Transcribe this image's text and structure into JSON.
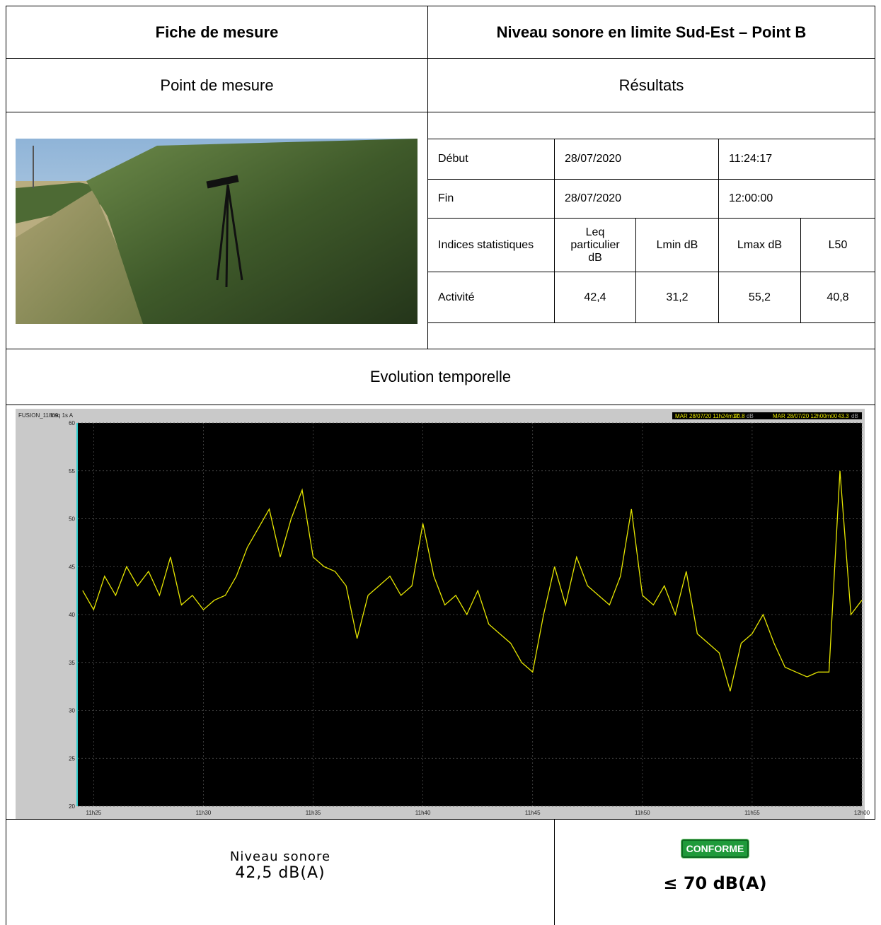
{
  "header": {
    "left": "Fiche de mesure",
    "right": "Niveau sonore en limite Sud-Est – Point B"
  },
  "subheader": {
    "left": "Point de mesure",
    "right": "Résultats"
  },
  "results": {
    "rows": [
      [
        "Début",
        "28/07/2020",
        "11:24:17"
      ],
      [
        "Fin",
        "28/07/2020",
        "12:00:00"
      ],
      [
        "Indices statistiques",
        "Leq particulier dB",
        "Lmin dB",
        "Lmax dB",
        "L50"
      ],
      [
        "Activité",
        "42,4",
        "31,2",
        "55,2",
        "40,8"
      ]
    ]
  },
  "section": "Evolution temporelle",
  "chart": {
    "type": "line",
    "source": "FUSION_11869",
    "measure": "Leq 1s A",
    "start_label": "MAR 28/07/20 11h24m17",
    "start_value": "40.8",
    "start_unit": "dB",
    "end_label": "MAR 28/07/20 12h00m00",
    "end_value": "43.3",
    "end_unit": "dB",
    "xlim": [
      24.28,
      60
    ],
    "ylim": [
      20,
      60
    ],
    "xticks": [
      {
        "value": 25,
        "label": "11h25"
      },
      {
        "value": 30,
        "label": "11h30"
      },
      {
        "value": 35,
        "label": "11h35"
      },
      {
        "value": 40,
        "label": "11h40"
      },
      {
        "value": 45,
        "label": "11h45"
      },
      {
        "value": 50,
        "label": "11h50"
      },
      {
        "value": 55,
        "label": "11h55"
      },
      {
        "value": 60,
        "label": "12h00"
      }
    ],
    "yticks": [
      20,
      25,
      30,
      35,
      40,
      45,
      50,
      55,
      60
    ],
    "grid": true,
    "series": [
      {
        "color": "#e6e600",
        "x": [
          24.5,
          25,
          25.5,
          26,
          26.5,
          27,
          27.5,
          28,
          28.5,
          29,
          29.5,
          30,
          30.5,
          31,
          31.5,
          32,
          32.5,
          33,
          33.5,
          34,
          34.5,
          35,
          35.5,
          36,
          36.5,
          37,
          37.5,
          38,
          38.5,
          39,
          39.5,
          40,
          40.5,
          41,
          41.5,
          42,
          42.5,
          43,
          43.5,
          44,
          44.5,
          45,
          45.5,
          46,
          46.5,
          47,
          47.5,
          48,
          48.5,
          49,
          49.5,
          50,
          50.5,
          51,
          51.5,
          52,
          52.5,
          53,
          53.5,
          54,
          54.5,
          55,
          55.5,
          56,
          56.5,
          57,
          57.5,
          58,
          58.5,
          59,
          59.5,
          60
        ],
        "values": [
          42.5,
          40.5,
          44,
          42,
          45,
          43,
          44.5,
          42,
          46,
          41,
          42,
          40.5,
          41.5,
          42,
          44,
          47,
          49,
          51,
          46,
          50,
          53,
          46,
          45,
          44.5,
          43,
          37.5,
          42,
          43,
          44,
          42,
          43,
          49.5,
          44,
          41,
          42,
          40,
          42.5,
          39,
          38,
          37,
          35,
          34,
          40,
          45,
          41,
          46,
          43,
          42,
          41,
          44,
          51,
          42,
          41,
          43,
          40,
          44.5,
          38,
          37,
          36,
          32,
          37,
          38,
          40,
          37,
          34.5,
          34,
          33.5,
          34,
          34,
          55,
          40,
          41.5
        ]
      }
    ]
  },
  "footer": {
    "label": "Niveau sonore",
    "value": "42,5 dB(A)",
    "status": "CONFORME",
    "limit": "≤ 70 dB(A)"
  }
}
